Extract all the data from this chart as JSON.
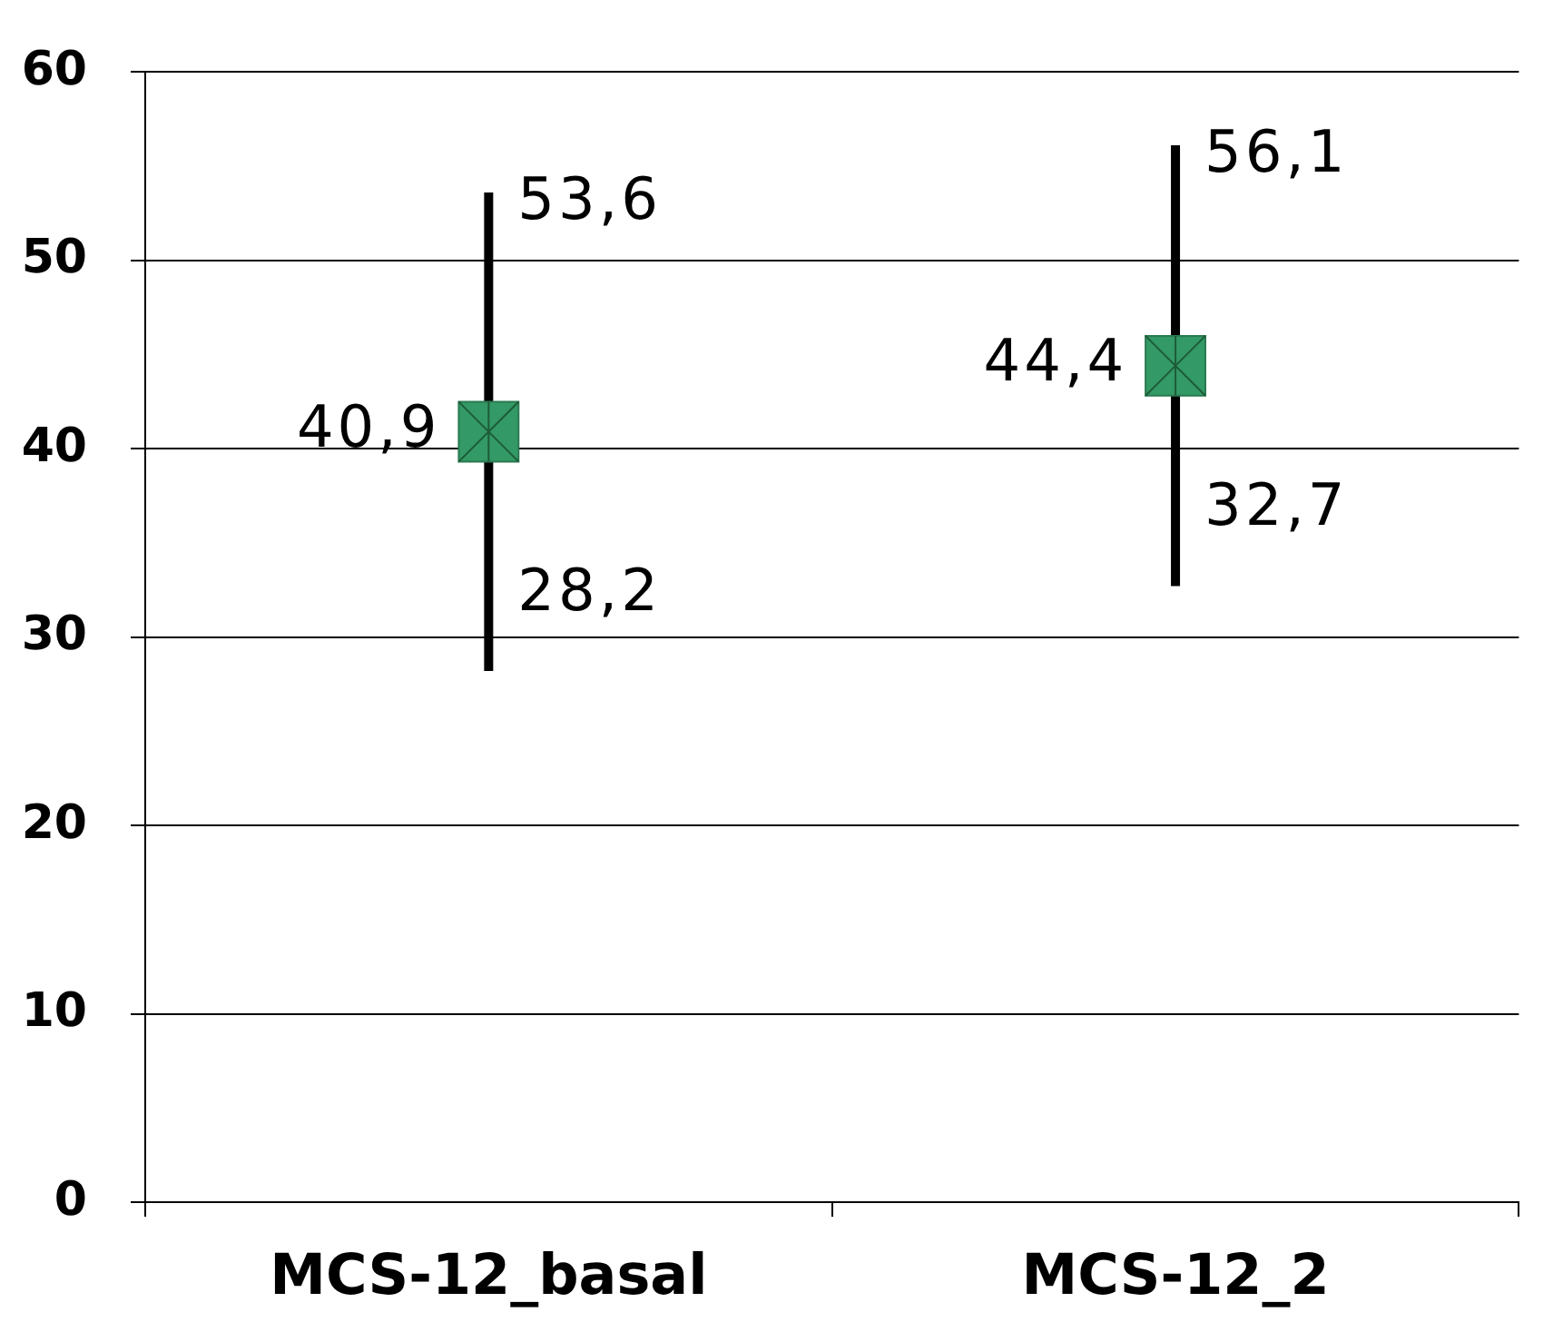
{
  "chart_data": {
    "type": "scatter",
    "categories": [
      "MCS-12_basal",
      "MCS-12_2"
    ],
    "values": [
      40.9,
      44.4
    ],
    "value_labels": [
      "40,9",
      "44,4"
    ],
    "errors": [
      [
        28.2,
        53.6
      ],
      [
        32.7,
        56.1
      ]
    ],
    "color": "#339966",
    "marker": "square",
    "ylim": [
      0,
      60
    ],
    "yticks": [
      0,
      10,
      20,
      30,
      40,
      50,
      60
    ],
    "grid": "y",
    "annotations": [
      {
        "text": "53,6",
        "x": "MCS-12_basal",
        "y": 53.6
      },
      {
        "text": "28,2",
        "x": "MCS-12_basal",
        "y": 28.2
      },
      {
        "text": "56,1",
        "x": "MCS-12_2",
        "y": 56.1
      },
      {
        "text": "32,7",
        "x": "MCS-12_2",
        "y": 32.7
      }
    ]
  }
}
